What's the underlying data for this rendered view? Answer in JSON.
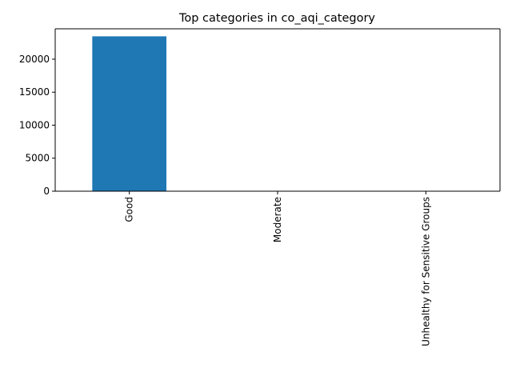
{
  "chart_data": {
    "type": "bar",
    "title": "Top categories in co_aqi_category",
    "xlabel": "",
    "ylabel": "",
    "categories": [
      "Good",
      "Moderate",
      "Unhealthy for Sensitive Groups"
    ],
    "values": [
      23460,
      3,
      0
    ],
    "ylim": [
      0,
      24600
    ],
    "yticks": [
      0,
      5000,
      10000,
      15000,
      20000
    ],
    "ytick_labels": [
      "0",
      "5000",
      "10000",
      "15000",
      "20000"
    ],
    "bar_color": "#1f77b4",
    "grid": false,
    "legend": "none",
    "xtick_rotation": "vertical"
  }
}
